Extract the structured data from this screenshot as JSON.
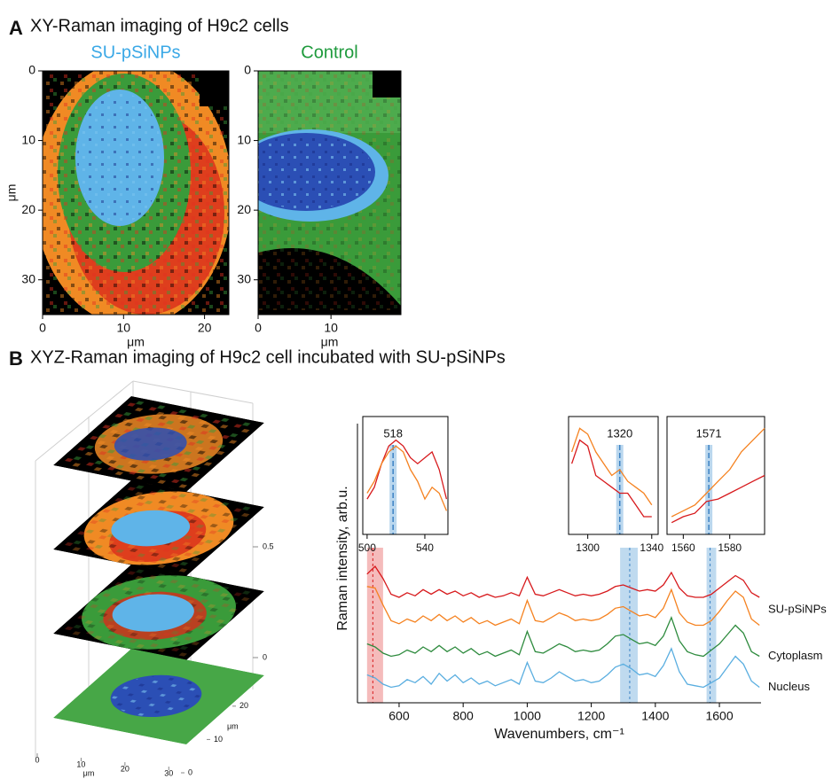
{
  "panels": [
    {
      "label": "A",
      "title": "XY-Raman imaging of H9c2 cells"
    },
    {
      "label": "B",
      "title": "XYZ-Raman imaging of H9c2 cell incubated with SU-pSiNPs"
    }
  ],
  "chart_data": [
    {
      "type": "heatmap",
      "title": "SU-pSiNPs",
      "title_color": "#3aa8e6",
      "xlabel": "μm",
      "ylabel": "μm",
      "xlim": [
        0,
        23
      ],
      "xticks": [
        0,
        10,
        20
      ],
      "ylim": [
        0,
        35
      ],
      "yticks": [
        0,
        10,
        20,
        30
      ],
      "y_inverted": true
    },
    {
      "type": "heatmap",
      "title": "Control",
      "title_color": "#1e9a3c",
      "xlabel": "μm",
      "xlim": [
        0,
        19.6
      ],
      "xticks": [
        0,
        10
      ],
      "ylim": [
        0,
        35
      ],
      "yticks": [
        0,
        10,
        20,
        30
      ],
      "y_inverted": true
    },
    {
      "type": "volume3d",
      "xlabel": "μm",
      "ylabel": "μm",
      "xlim": [
        0,
        35
      ],
      "xticks": [
        0,
        10,
        20,
        30
      ],
      "ylim": [
        0,
        25
      ],
      "yticks": [
        0,
        10,
        20
      ],
      "zlim": [
        0,
        1.1
      ],
      "zticks": [
        0,
        0.5
      ]
    },
    {
      "type": "line",
      "xlabel": "Wavenumbers, cm⁻¹",
      "ylabel": "Raman intensity, arb.u.",
      "xlim": [
        470,
        1730
      ],
      "xticks": [
        600,
        800,
        1000,
        1200,
        1400,
        1600
      ],
      "ylim": [
        0,
        18
      ],
      "x": [
        500,
        525,
        550,
        575,
        600,
        625,
        650,
        675,
        700,
        725,
        750,
        775,
        800,
        825,
        850,
        875,
        900,
        925,
        950,
        975,
        1000,
        1025,
        1050,
        1075,
        1100,
        1125,
        1150,
        1175,
        1200,
        1225,
        1250,
        1275,
        1300,
        1325,
        1350,
        1375,
        1400,
        1425,
        1450,
        1475,
        1500,
        1525,
        1550,
        1575,
        1600,
        1625,
        1650,
        1675,
        1700,
        1725
      ],
      "highlights": [
        {
          "range": [
            500,
            550
          ],
          "line": 518,
          "color": "#f2a4a4",
          "line_color": "#d7191c"
        },
        {
          "range": [
            1290,
            1345
          ],
          "line": 1320,
          "color": "#a9cdea",
          "line_color": "#3c82c4"
        },
        {
          "range": [
            1560,
            1590
          ],
          "line": 1571,
          "color": "#a9cdea",
          "line_color": "#3c82c4"
        }
      ],
      "series": [
        {
          "name": "SU-pSiNPs",
          "color": "#d7191c",
          "values": [
            8.3,
            8.8,
            8.0,
            7.0,
            6.8,
            7.1,
            6.9,
            7.3,
            7.0,
            7.3,
            7.0,
            7.2,
            6.9,
            7.1,
            6.8,
            7.0,
            6.8,
            6.9,
            7.1,
            6.9,
            8.1,
            7.0,
            6.9,
            7.1,
            7.3,
            7.1,
            6.9,
            7.0,
            6.9,
            7.0,
            7.2,
            7.5,
            7.6,
            7.4,
            7.2,
            7.3,
            7.2,
            7.6,
            8.4,
            7.4,
            6.9,
            6.8,
            6.8,
            7.0,
            7.4,
            7.8,
            8.2,
            7.9,
            7.1,
            6.8
          ]
        },
        {
          "color": "#f58220",
          "values": [
            7.5,
            7.4,
            6.3,
            5.3,
            5.1,
            5.4,
            5.2,
            5.6,
            5.3,
            5.7,
            5.3,
            5.6,
            5.2,
            5.5,
            5.1,
            5.3,
            5.0,
            5.2,
            5.4,
            5.1,
            6.6,
            5.3,
            5.2,
            5.5,
            5.8,
            5.6,
            5.3,
            5.4,
            5.3,
            5.4,
            5.7,
            6.1,
            6.2,
            5.9,
            5.6,
            5.7,
            5.5,
            6.1,
            7.3,
            5.8,
            5.2,
            5.0,
            5.0,
            5.3,
            5.9,
            6.6,
            7.2,
            6.8,
            5.4,
            5.0
          ]
        },
        {
          "name": "Cytoplasm",
          "color": "#2e8b3e",
          "values": [
            3.8,
            3.6,
            3.2,
            3.0,
            3.1,
            3.4,
            3.2,
            3.6,
            3.3,
            3.7,
            3.3,
            3.6,
            3.2,
            3.5,
            3.1,
            3.3,
            3.0,
            3.2,
            3.4,
            3.1,
            4.6,
            3.3,
            3.2,
            3.5,
            3.8,
            3.6,
            3.3,
            3.4,
            3.3,
            3.4,
            3.8,
            4.3,
            4.4,
            4.1,
            3.8,
            3.9,
            3.7,
            4.3,
            5.5,
            4.0,
            3.3,
            3.1,
            3.0,
            3.4,
            3.8,
            4.4,
            5.0,
            4.5,
            3.3,
            3.0
          ]
        },
        {
          "name": "Nucleus",
          "color": "#5aaee0",
          "values": [
            1.8,
            1.6,
            1.2,
            1.0,
            1.1,
            1.5,
            1.3,
            1.7,
            1.2,
            1.9,
            1.4,
            1.8,
            1.3,
            1.6,
            1.2,
            1.4,
            1.1,
            1.3,
            1.5,
            1.2,
            2.6,
            1.4,
            1.3,
            1.6,
            2.0,
            1.7,
            1.4,
            1.5,
            1.3,
            1.4,
            1.8,
            2.3,
            2.5,
            2.2,
            1.8,
            1.9,
            1.7,
            2.4,
            3.5,
            2.0,
            1.2,
            1.1,
            1.0,
            1.3,
            1.6,
            2.3,
            3.0,
            2.5,
            1.4,
            1.0
          ]
        }
      ]
    },
    {
      "type": "line",
      "xlim": [
        497,
        556
      ],
      "xticks": [
        500,
        540
      ],
      "ylim": [
        0,
        10
      ],
      "marker": 518,
      "x": [
        500,
        505,
        510,
        515,
        520,
        525,
        530,
        535,
        540,
        545,
        550,
        555
      ],
      "series": [
        {
          "color": "#d7191c",
          "values": [
            3,
            4,
            6,
            7.5,
            8,
            7.5,
            6.5,
            6,
            6.5,
            7,
            5.5,
            3
          ]
        },
        {
          "color": "#f58220",
          "values": [
            3.5,
            4.5,
            6,
            7,
            7.5,
            7,
            5.5,
            4.5,
            3,
            4,
            3.5,
            2
          ]
        }
      ]
    },
    {
      "type": "line",
      "xlim": [
        1288,
        1344
      ],
      "xticks": [
        1300,
        1340
      ],
      "ylim": [
        0,
        10
      ],
      "marker": 1320,
      "x": [
        1290,
        1295,
        1300,
        1305,
        1310,
        1315,
        1320,
        1325,
        1330,
        1335,
        1340
      ],
      "series": [
        {
          "color": "#d7191c",
          "values": [
            6,
            8,
            7.5,
            5,
            4.5,
            4,
            3.5,
            3.5,
            2.5,
            1.5,
            1.5
          ]
        },
        {
          "color": "#f58220",
          "values": [
            7,
            9,
            8.5,
            7,
            6,
            5,
            5.5,
            4.5,
            4,
            3.5,
            2.5
          ]
        }
      ]
    },
    {
      "type": "line",
      "xlim": [
        1553,
        1595
      ],
      "xticks": [
        1560,
        1580
      ],
      "ylim": [
        0,
        10
      ],
      "marker": 1571,
      "x": [
        1555,
        1560,
        1565,
        1570,
        1575,
        1580,
        1585,
        1590,
        1595
      ],
      "series": [
        {
          "color": "#d7191c",
          "values": [
            1,
            1.5,
            1.8,
            2.8,
            3,
            3.5,
            4,
            4.5,
            5
          ]
        },
        {
          "color": "#f58220",
          "values": [
            1.5,
            2,
            2.5,
            3.5,
            4.5,
            5.5,
            7,
            8,
            9
          ]
        }
      ]
    }
  ]
}
